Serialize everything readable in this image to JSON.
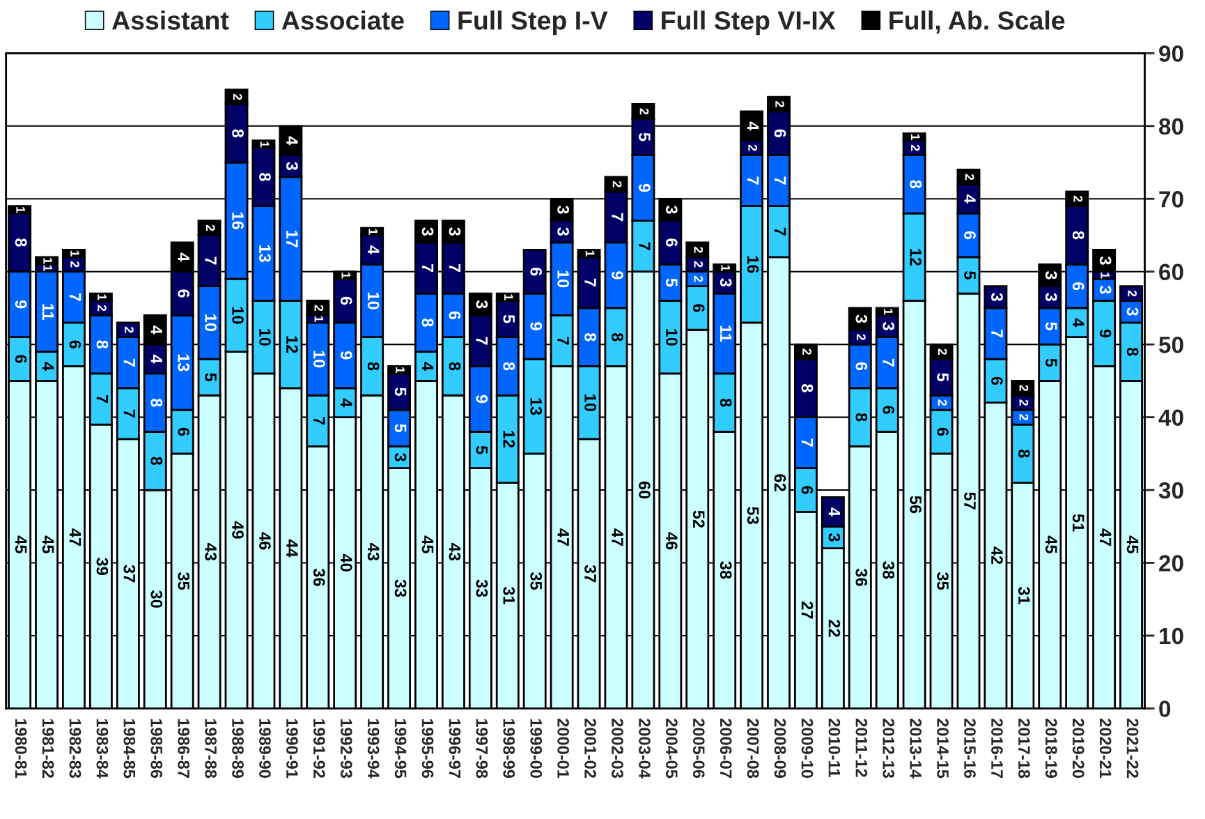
{
  "chart_data": {
    "type": "bar",
    "stacked": true,
    "data_labels": true,
    "grid": "y",
    "legend": "top",
    "ylim": [
      0,
      90
    ],
    "yticks": [
      0,
      10,
      20,
      30,
      40,
      50,
      60,
      70,
      80,
      90
    ],
    "categories": [
      "1980-81",
      "1981-82",
      "1982-83",
      "1983-84",
      "1984-85",
      "1985-86",
      "1986-87",
      "1987-88",
      "1988-89",
      "1989-90",
      "1990-91",
      "1991-92",
      "1992-93",
      "1993-94",
      "1994-95",
      "1995-96",
      "1996-97",
      "1997-98",
      "1998-99",
      "1999-00",
      "2000-01",
      "2001-02",
      "2002-03",
      "2003-04",
      "2004-05",
      "2005-06",
      "2006-07",
      "2007-08",
      "2008-09",
      "2009-10",
      "2010-11",
      "2011-12",
      "2012-13",
      "2013-14",
      "2014-15",
      "2015-16",
      "2016-17",
      "2017-18",
      "2018-19",
      "2019-20",
      "2020-21",
      "2021-22"
    ],
    "series": [
      {
        "name": "Assistant",
        "color": "#ccffff",
        "values": [
          45,
          45,
          47,
          39,
          37,
          30,
          35,
          43,
          49,
          46,
          44,
          36,
          40,
          43,
          33,
          45,
          43,
          33,
          31,
          35,
          47,
          37,
          47,
          60,
          46,
          52,
          38,
          53,
          62,
          27,
          22,
          36,
          38,
          56,
          35,
          57,
          42,
          31,
          45,
          51,
          47,
          45
        ]
      },
      {
        "name": "Associate",
        "color": "#33ccff",
        "values": [
          6,
          4,
          6,
          7,
          7,
          8,
          6,
          5,
          10,
          10,
          12,
          7,
          4,
          8,
          3,
          4,
          8,
          5,
          12,
          13,
          7,
          10,
          8,
          7,
          10,
          6,
          8,
          16,
          7,
          6,
          3,
          8,
          6,
          12,
          6,
          5,
          6,
          8,
          5,
          4,
          9,
          8
        ]
      },
      {
        "name": "Full Step I-V",
        "color": "#0066ff",
        "values": [
          9,
          11,
          7,
          8,
          7,
          8,
          13,
          10,
          16,
          13,
          17,
          10,
          9,
          10,
          5,
          8,
          6,
          9,
          8,
          9,
          10,
          8,
          9,
          9,
          5,
          2,
          11,
          7,
          7,
          7,
          null,
          6,
          7,
          8,
          2,
          6,
          7,
          2,
          5,
          6,
          3,
          3
        ]
      },
      {
        "name": "Full Step VI-IX",
        "color": "#000066",
        "values": [
          8,
          1,
          2,
          2,
          2,
          4,
          6,
          7,
          8,
          8,
          3,
          1,
          6,
          4,
          5,
          7,
          7,
          7,
          5,
          6,
          3,
          7,
          7,
          5,
          6,
          2,
          3,
          2,
          6,
          8,
          4,
          2,
          3,
          2,
          5,
          4,
          3,
          2,
          3,
          8,
          1,
          2
        ]
      },
      {
        "name": "Full, Ab. Scale",
        "color": "#000000",
        "values": [
          1,
          1,
          1,
          1,
          null,
          4,
          4,
          2,
          2,
          1,
          4,
          2,
          1,
          1,
          1,
          3,
          3,
          3,
          1,
          null,
          3,
          1,
          2,
          2,
          3,
          2,
          1,
          4,
          2,
          2,
          null,
          3,
          1,
          1,
          2,
          2,
          null,
          2,
          3,
          2,
          3,
          null
        ]
      }
    ]
  }
}
